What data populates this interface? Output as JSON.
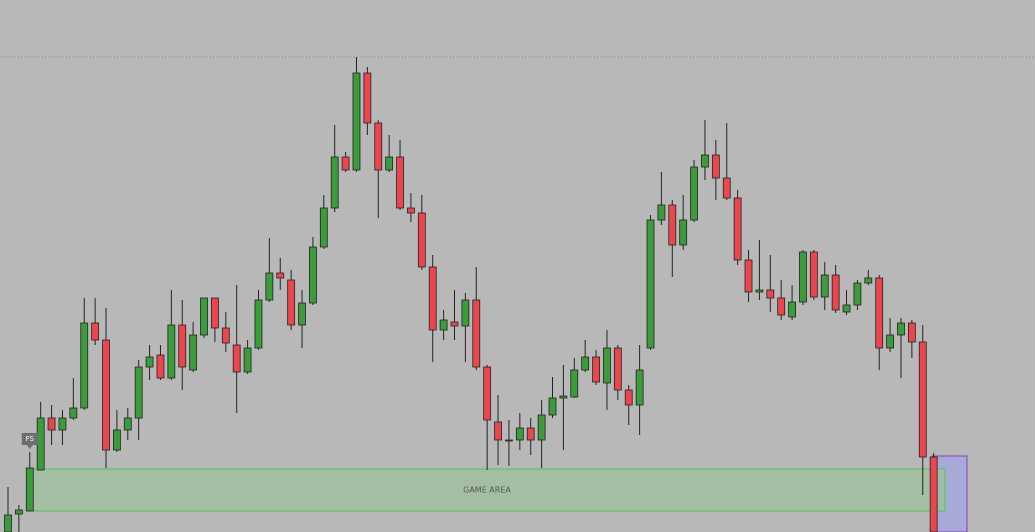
{
  "chart_data": {
    "type": "candlestick",
    "ylim": [
      0,
      532
    ],
    "open": [
      0,
      18,
      21,
      62,
      114,
      102,
      114,
      124,
      209,
      192,
      82,
      102,
      114,
      165,
      177,
      154,
      207,
      162,
      197,
      234,
      204,
      187,
      160,
      184,
      232,
      259,
      252,
      207,
      229,
      285,
      324,
      375,
      362,
      459,
      409,
      362,
      375,
      324,
      319,
      265,
      202,
      210,
      206,
      232,
      165,
      110,
      92,
      92,
      104,
      92,
      117,
      134,
      135,
      162,
      175,
      149,
      184,
      142,
      127,
      184,
      312,
      327,
      287,
      312,
      365,
      377,
      354,
      334,
      272,
      240,
      242,
      234,
      215,
      230,
      280,
      235,
      257,
      220,
      227,
      249,
      254,
      184,
      197,
      209,
      190,
      75
    ],
    "high": [
      45,
      27,
      80,
      130,
      127,
      122,
      154,
      234,
      234,
      224,
      122,
      124,
      172,
      187,
      187,
      242,
      232,
      210,
      234,
      234,
      220,
      247,
      192,
      242,
      294,
      274,
      262,
      242,
      295,
      337,
      407,
      380,
      475,
      465,
      412,
      397,
      392,
      339,
      337,
      277,
      222,
      242,
      239,
      265,
      167,
      137,
      112,
      119,
      114,
      132,
      155,
      167,
      174,
      192,
      182,
      202,
      187,
      147,
      187,
      317,
      360,
      332,
      337,
      372,
      412,
      392,
      409,
      342,
      282,
      292,
      277,
      252,
      247,
      282,
      282,
      270,
      267,
      242,
      252,
      262,
      257,
      214,
      214,
      212,
      207,
      79
    ],
    "low": [
      0,
      0,
      21,
      62,
      87,
      87,
      112,
      122,
      187,
      64,
      80,
      92,
      92,
      152,
      152,
      152,
      142,
      160,
      194,
      190,
      180,
      119,
      158,
      182,
      230,
      242,
      202,
      184,
      227,
      283,
      320,
      360,
      360,
      397,
      314,
      360,
      322,
      310,
      262,
      170,
      192,
      192,
      170,
      162,
      62,
      67,
      66,
      82,
      77,
      64,
      114,
      82,
      134,
      160,
      147,
      122,
      132,
      107,
      97,
      182,
      307,
      255,
      282,
      310,
      352,
      332,
      332,
      267,
      230,
      232,
      220,
      212,
      212,
      227,
      232,
      222,
      219,
      217,
      222,
      247,
      162,
      180,
      154,
      174,
      37,
      0
    ],
    "close": [
      17,
      22,
      64,
      114,
      102,
      114,
      124,
      209,
      192,
      82,
      102,
      114,
      165,
      175,
      154,
      207,
      165,
      197,
      234,
      204,
      189,
      160,
      184,
      232,
      259,
      254,
      207,
      229,
      285,
      324,
      375,
      362,
      459,
      409,
      362,
      375,
      324,
      319,
      265,
      202,
      212,
      206,
      232,
      165,
      112,
      92,
      91,
      104,
      92,
      117,
      134,
      136,
      162,
      175,
      150,
      184,
      142,
      127,
      162,
      312,
      327,
      287,
      312,
      365,
      377,
      354,
      334,
      272,
      240,
      242,
      234,
      217,
      230,
      280,
      235,
      257,
      222,
      227,
      249,
      254,
      184,
      197,
      209,
      190,
      75,
      0
    ],
    "up_color": "#3c9b3c",
    "down_color": "#e9474f",
    "level": 475,
    "zone": {
      "label": "GAME AREA",
      "top": 63,
      "bottom": 21,
      "color": "#9fbf9f"
    },
    "marker": "FS"
  }
}
